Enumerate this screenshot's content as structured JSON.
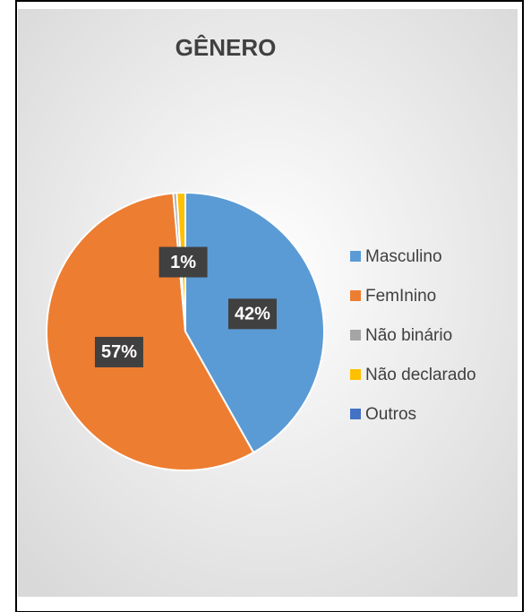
{
  "chart_data": {
    "type": "pie",
    "title": "GÊNERO",
    "categories": [
      "Masculino",
      "FemInino",
      "Não binário",
      "Não declarado",
      "Outros"
    ],
    "values": [
      42,
      57,
      0.4,
      1,
      0
    ],
    "value_labels": [
      "42%",
      "57%",
      null,
      "1%",
      null
    ],
    "colors": [
      "#5b9bd5",
      "#ed7d31",
      "#a5a5a5",
      "#ffc000",
      "#4472c4"
    ],
    "legend": "right"
  }
}
